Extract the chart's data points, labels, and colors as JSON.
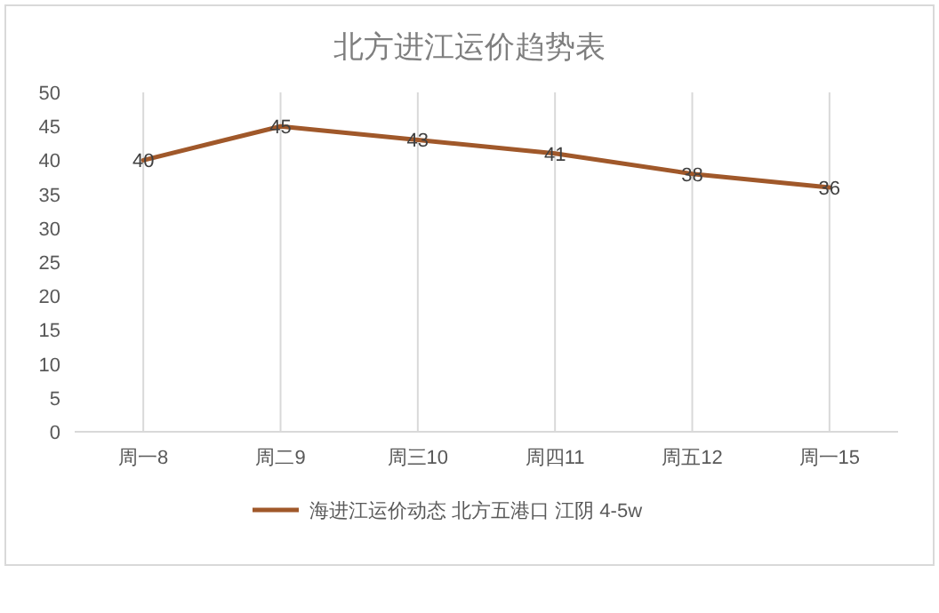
{
  "chart_data": {
    "type": "line",
    "title": "北方进江运价趋势表",
    "categories": [
      "周一8",
      "周二9",
      "周三10",
      "周四11",
      "周五12",
      "周一15"
    ],
    "series": [
      {
        "name": "海进江运价动态 北方五港口 江阴 4-5w",
        "color": "#a0582a",
        "values": [
          40,
          45,
          43,
          41,
          38,
          36
        ]
      }
    ],
    "ylim": [
      0,
      50
    ],
    "yticks": [
      0,
      5,
      10,
      15,
      20,
      25,
      30,
      35,
      40,
      45,
      50
    ],
    "grid": "x",
    "legend": "bottom",
    "data_labels": true,
    "marker": "none",
    "line_style": "solid"
  }
}
